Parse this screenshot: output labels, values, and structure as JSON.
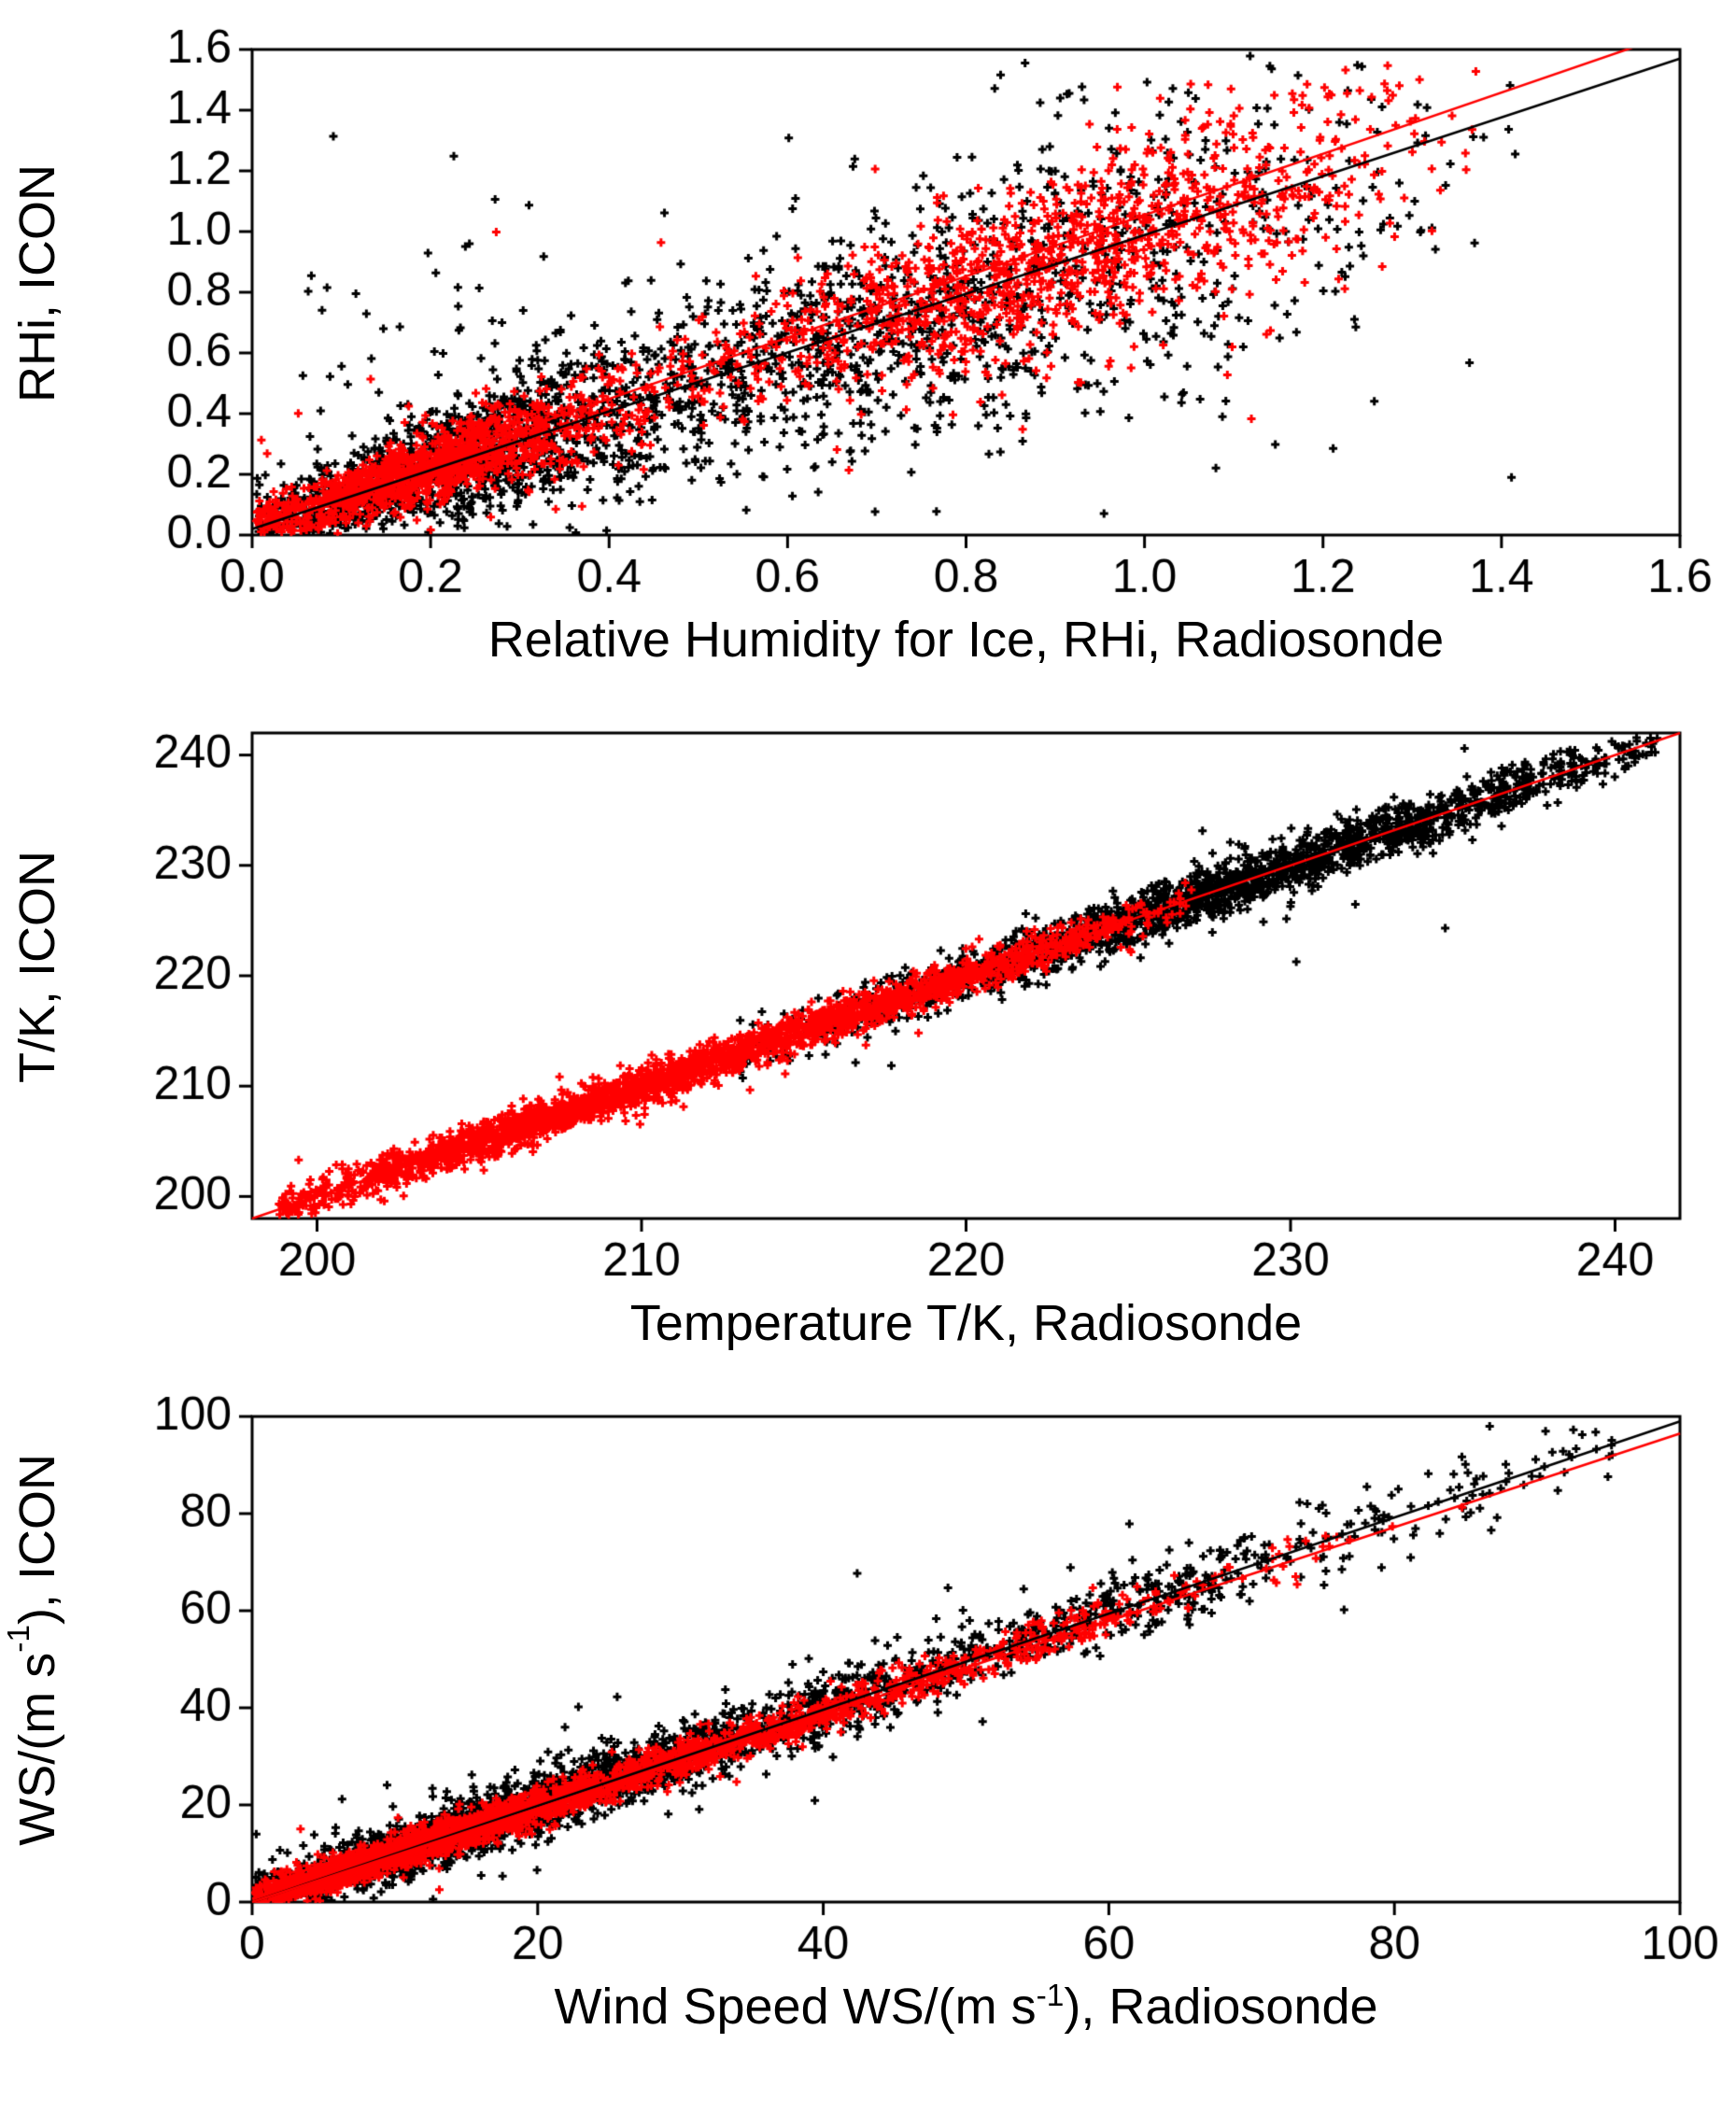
{
  "figure": {
    "background": "#ffffff",
    "marker_color_primary": "#000000",
    "marker_color_secondary": "#ff0000"
  },
  "chart_data": [
    {
      "type": "scatter",
      "title": "",
      "xlabel_pre": "Relative Humidity for Ice, RHi, Radiosonde",
      "xlabel_sup": "",
      "xlabel_post": "",
      "ylabel_pre": "RHi, ICON",
      "ylabel_sup": "",
      "ylabel_post": "",
      "xlim": [
        0,
        1.6
      ],
      "ylim": [
        0,
        1.6
      ],
      "xticks": [
        0,
        0.2,
        0.4,
        0.6,
        0.8,
        1.0,
        1.2,
        1.4,
        1.6
      ],
      "xtick_labels": [
        "0.0",
        "0.2",
        "0.4",
        "0.6",
        "0.8",
        "1.0",
        "1.2",
        "1.4",
        "1.6"
      ],
      "yticks": [
        0,
        0.2,
        0.4,
        0.6,
        0.8,
        1.0,
        1.2,
        1.4,
        1.6
      ],
      "ytick_labels": [
        "0.0",
        "0.2",
        "0.4",
        "0.6",
        "0.8",
        "1.0",
        "1.2",
        "1.4",
        "1.6"
      ],
      "grid": false,
      "legend": null,
      "fit_lines": [
        {
          "color": "#000000",
          "x1": 0,
          "y1": 0.02,
          "x2": 1.6,
          "y2": 1.57,
          "width": 2.5
        },
        {
          "color": "#ff0000",
          "x1": 0,
          "y1": 0.045,
          "x2": 1.6,
          "y2": 1.66,
          "width": 2.5
        }
      ],
      "series": [
        {
          "name": "black-points",
          "color": "#000000",
          "marker": "plus",
          "n": 2300,
          "seed": 11,
          "x_clusters": [
            {
              "mean": 0.2,
              "sd": 0.13,
              "weight": 0.45
            },
            {
              "mean": 0.72,
              "sd": 0.3,
              "weight": 0.55
            }
          ],
          "x_range": [
            0.005,
            1.42
          ],
          "slope": 0.9,
          "intercept": 0.03,
          "noise_base": 0.05,
          "noise_slope": 0.2,
          "outlier_frac": 0.1,
          "outlier_sd": 0.38,
          "y_range": [
            0.005,
            1.58
          ]
        },
        {
          "name": "red-points",
          "color": "#ff0000",
          "marker": "plus",
          "n": 2400,
          "seed": 22,
          "x_clusters": [
            {
              "mean": 0.19,
              "sd": 0.11,
              "weight": 0.5
            },
            {
              "mean": 0.88,
              "sd": 0.2,
              "weight": 0.5
            }
          ],
          "x_range": [
            0.005,
            1.38
          ],
          "slope": 0.97,
          "intercept": 0.03,
          "noise_base": 0.035,
          "noise_slope": 0.12,
          "outlier_frac": 0.03,
          "outlier_sd": 0.28,
          "y_range": [
            0.005,
            1.55
          ]
        }
      ]
    },
    {
      "type": "scatter",
      "title": "",
      "xlabel_pre": "Temperature T/K, Radiosonde",
      "xlabel_sup": "",
      "xlabel_post": "",
      "ylabel_pre": "T/K, ICON",
      "ylabel_sup": "",
      "ylabel_post": "",
      "xlim": [
        198,
        242
      ],
      "ylim": [
        198,
        242
      ],
      "xticks": [
        200,
        210,
        220,
        230,
        240
      ],
      "xtick_labels": [
        "200",
        "210",
        "220",
        "230",
        "240"
      ],
      "yticks": [
        200,
        210,
        220,
        230,
        240
      ],
      "ytick_labels": [
        "200",
        "210",
        "220",
        "230",
        "240"
      ],
      "grid": false,
      "legend": null,
      "fit_lines": [
        {
          "color": "#ff0000",
          "x1": 198,
          "y1": 198,
          "x2": 242,
          "y2": 242,
          "width": 2.5
        }
      ],
      "series": [
        {
          "name": "black-points",
          "color": "#000000",
          "marker": "plus",
          "n": 2000,
          "seed": 33,
          "x_clusters": [
            {
              "mean": 228,
              "sd": 7.5,
              "weight": 1.0
            }
          ],
          "x_range": [
            213,
            241.3
          ],
          "slope": 1.0,
          "intercept": 0,
          "noise_base": 1.15,
          "noise_slope": 0,
          "outlier_frac": 0.012,
          "outlier_sd": 3.2,
          "y_range": [
            198.3,
            241.7
          ]
        },
        {
          "name": "red-points",
          "color": "#ff0000",
          "marker": "plus",
          "n": 2600,
          "seed": 44,
          "x_clusters": [
            {
              "mean": 208,
              "sd": 6.0,
              "weight": 0.75
            },
            {
              "mean": 219,
              "sd": 4.5,
              "weight": 0.25
            }
          ],
          "x_range": [
            198.8,
            227
          ],
          "slope": 1.0,
          "intercept": 0,
          "noise_base": 0.85,
          "noise_slope": 0,
          "outlier_frac": 0.008,
          "outlier_sd": 2.5,
          "y_range": [
            198.3,
            241.7
          ]
        }
      ]
    },
    {
      "type": "scatter",
      "title": "",
      "xlabel_pre": "Wind Speed WS/(m s",
      "xlabel_sup": "-1",
      "xlabel_post": "), Radiosonde",
      "ylabel_pre": "WS/(m s",
      "ylabel_sup": "-1",
      "ylabel_post": "), ICON",
      "xlim": [
        0,
        100
      ],
      "ylim": [
        0,
        100
      ],
      "xticks": [
        0,
        20,
        40,
        60,
        80,
        100
      ],
      "xtick_labels": [
        "0",
        "20",
        "40",
        "60",
        "80",
        "100"
      ],
      "yticks": [
        0,
        20,
        40,
        60,
        80,
        100
      ],
      "ytick_labels": [
        "0",
        "20",
        "40",
        "60",
        "80",
        "100"
      ],
      "grid": false,
      "legend": null,
      "fit_lines": [
        {
          "color": "#000000",
          "x1": 0,
          "y1": 0,
          "x2": 100,
          "y2": 99,
          "width": 2.5
        },
        {
          "color": "#ff0000",
          "x1": 0,
          "y1": 0,
          "x2": 100,
          "y2": 96.5,
          "width": 2.5
        }
      ],
      "series": [
        {
          "name": "black-points",
          "color": "#000000",
          "marker": "plus",
          "n": 2600,
          "seed": 55,
          "x_clusters": [
            {
              "mean": 12,
              "sd": 9,
              "weight": 0.45
            },
            {
              "mean": 30,
              "sd": 12,
              "weight": 0.33
            },
            {
              "mean": 58,
              "sd": 17,
              "weight": 0.22
            }
          ],
          "x_range": [
            0.2,
            96
          ],
          "slope": 0.99,
          "intercept": 0.3,
          "noise_base": 2.6,
          "noise_slope": 0.015,
          "outlier_frac": 0.06,
          "outlier_sd": 6.5,
          "y_range": [
            0,
            98.5
          ]
        },
        {
          "name": "red-points",
          "color": "#ff0000",
          "marker": "plus",
          "n": 2800,
          "seed": 66,
          "x_clusters": [
            {
              "mean": 9,
              "sd": 7,
              "weight": 0.48
            },
            {
              "mean": 26,
              "sd": 10,
              "weight": 0.37
            },
            {
              "mean": 47,
              "sd": 13,
              "weight": 0.15
            }
          ],
          "x_range": [
            0.2,
            88
          ],
          "slope": 0.97,
          "intercept": 0.3,
          "noise_base": 1.6,
          "noise_slope": 0.01,
          "outlier_frac": 0.02,
          "outlier_sd": 4,
          "y_range": [
            0,
            97
          ]
        }
      ]
    }
  ]
}
